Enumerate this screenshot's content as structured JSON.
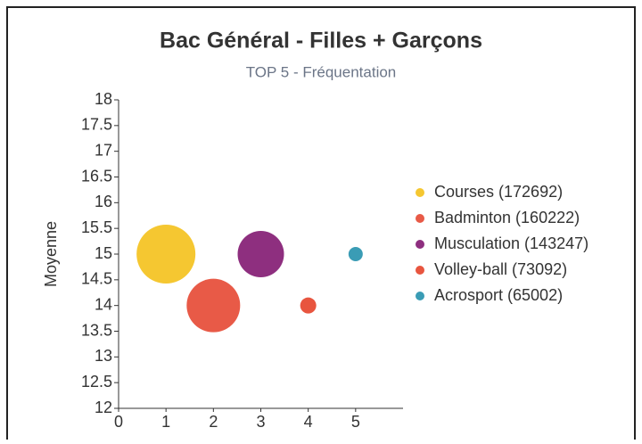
{
  "chart_data": {
    "type": "bubble",
    "title": "Bac Général - Filles + Garçons",
    "subtitle": "TOP 5 - Fréquentation",
    "ylabel": "Moyenne",
    "xlim": [
      0,
      6
    ],
    "xticks": [
      0,
      1,
      2,
      3,
      4,
      5
    ],
    "ylim": [
      12,
      18
    ],
    "yticks": [
      12,
      12.5,
      13,
      13.5,
      14,
      14.5,
      15,
      15.5,
      16,
      16.5,
      17,
      17.5,
      18
    ],
    "legend": "right",
    "series": [
      {
        "name": "Courses (172692)",
        "color": "#f5c731",
        "x": [
          1
        ],
        "values": [
          15
        ],
        "sizes": [
          33
        ]
      },
      {
        "name": "Badminton (160222)",
        "color": "#e85a47",
        "x": [
          2
        ],
        "values": [
          14
        ],
        "sizes": [
          30
        ]
      },
      {
        "name": "Musculation (143247)",
        "color": "#8e2f7f",
        "x": [
          3
        ],
        "values": [
          15
        ],
        "sizes": [
          26
        ]
      },
      {
        "name": "Volley-ball (73092)",
        "color": "#e8553f",
        "x": [
          4
        ],
        "values": [
          14
        ],
        "sizes": [
          9
        ]
      },
      {
        "name": "Acrosport (65002)",
        "color": "#3a9cb5",
        "x": [
          5
        ],
        "values": [
          15
        ],
        "sizes": [
          8
        ]
      }
    ]
  }
}
